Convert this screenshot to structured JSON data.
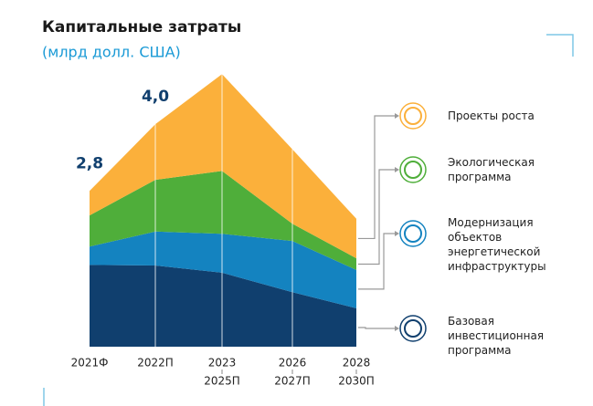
{
  "chart_data": {
    "type": "stacked_area",
    "title": "Капитальные затраты",
    "subtitle": "(млрд долл. США)",
    "categories": [
      "2021Ф",
      "2022П",
      "2023",
      "2026",
      "2028"
    ],
    "categories_second_row": [
      "2025П",
      "2027П",
      "2030П"
    ],
    "ylim": [
      0,
      5.2
    ],
    "series": [
      {
        "name": "Базовая инвестиционная программа",
        "color": "#103f6e",
        "values": [
          1.47,
          1.46,
          1.33,
          0.98,
          0.69
        ]
      },
      {
        "name": "Модернизация объектов энергетической инфраструктуры",
        "color": "#1483c0",
        "values": [
          0.33,
          0.61,
          0.7,
          0.92,
          0.69
        ]
      },
      {
        "name": "Экологическая программа",
        "color": "#4fae3a",
        "values": [
          0.56,
          0.93,
          1.13,
          0.31,
          0.21
        ]
      },
      {
        "name": "Проекты роста",
        "color": "#fbb03b",
        "values": [
          0.44,
          1.0,
          1.74,
          1.34,
          0.71
        ]
      }
    ],
    "annotations": [
      {
        "text": "2,8",
        "x": "2021Ф"
      },
      {
        "text": "4,0",
        "x": "2022П"
      }
    ]
  }
}
